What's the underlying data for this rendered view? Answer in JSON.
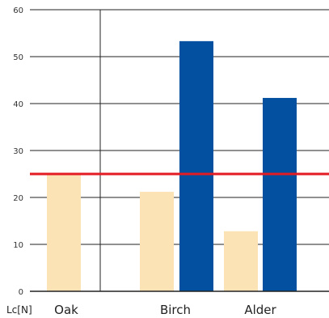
{
  "chart_data": {
    "type": "bar",
    "y_unit_label": "Lc[N]",
    "categories": [
      "Oak",
      "Birch",
      "Alder"
    ],
    "series": [
      {
        "color": "#fce3b6",
        "values": [
          25,
          21.2,
          12.8
        ]
      },
      {
        "color": "#02509f",
        "values": [
          null,
          53.3,
          41.2
        ]
      }
    ],
    "reference_line": {
      "value": 25,
      "color": "#e31b23"
    },
    "ylim": [
      0,
      60
    ],
    "yticks": [
      0,
      10,
      20,
      30,
      40,
      50,
      60
    ],
    "grid": true,
    "legend": "none"
  }
}
